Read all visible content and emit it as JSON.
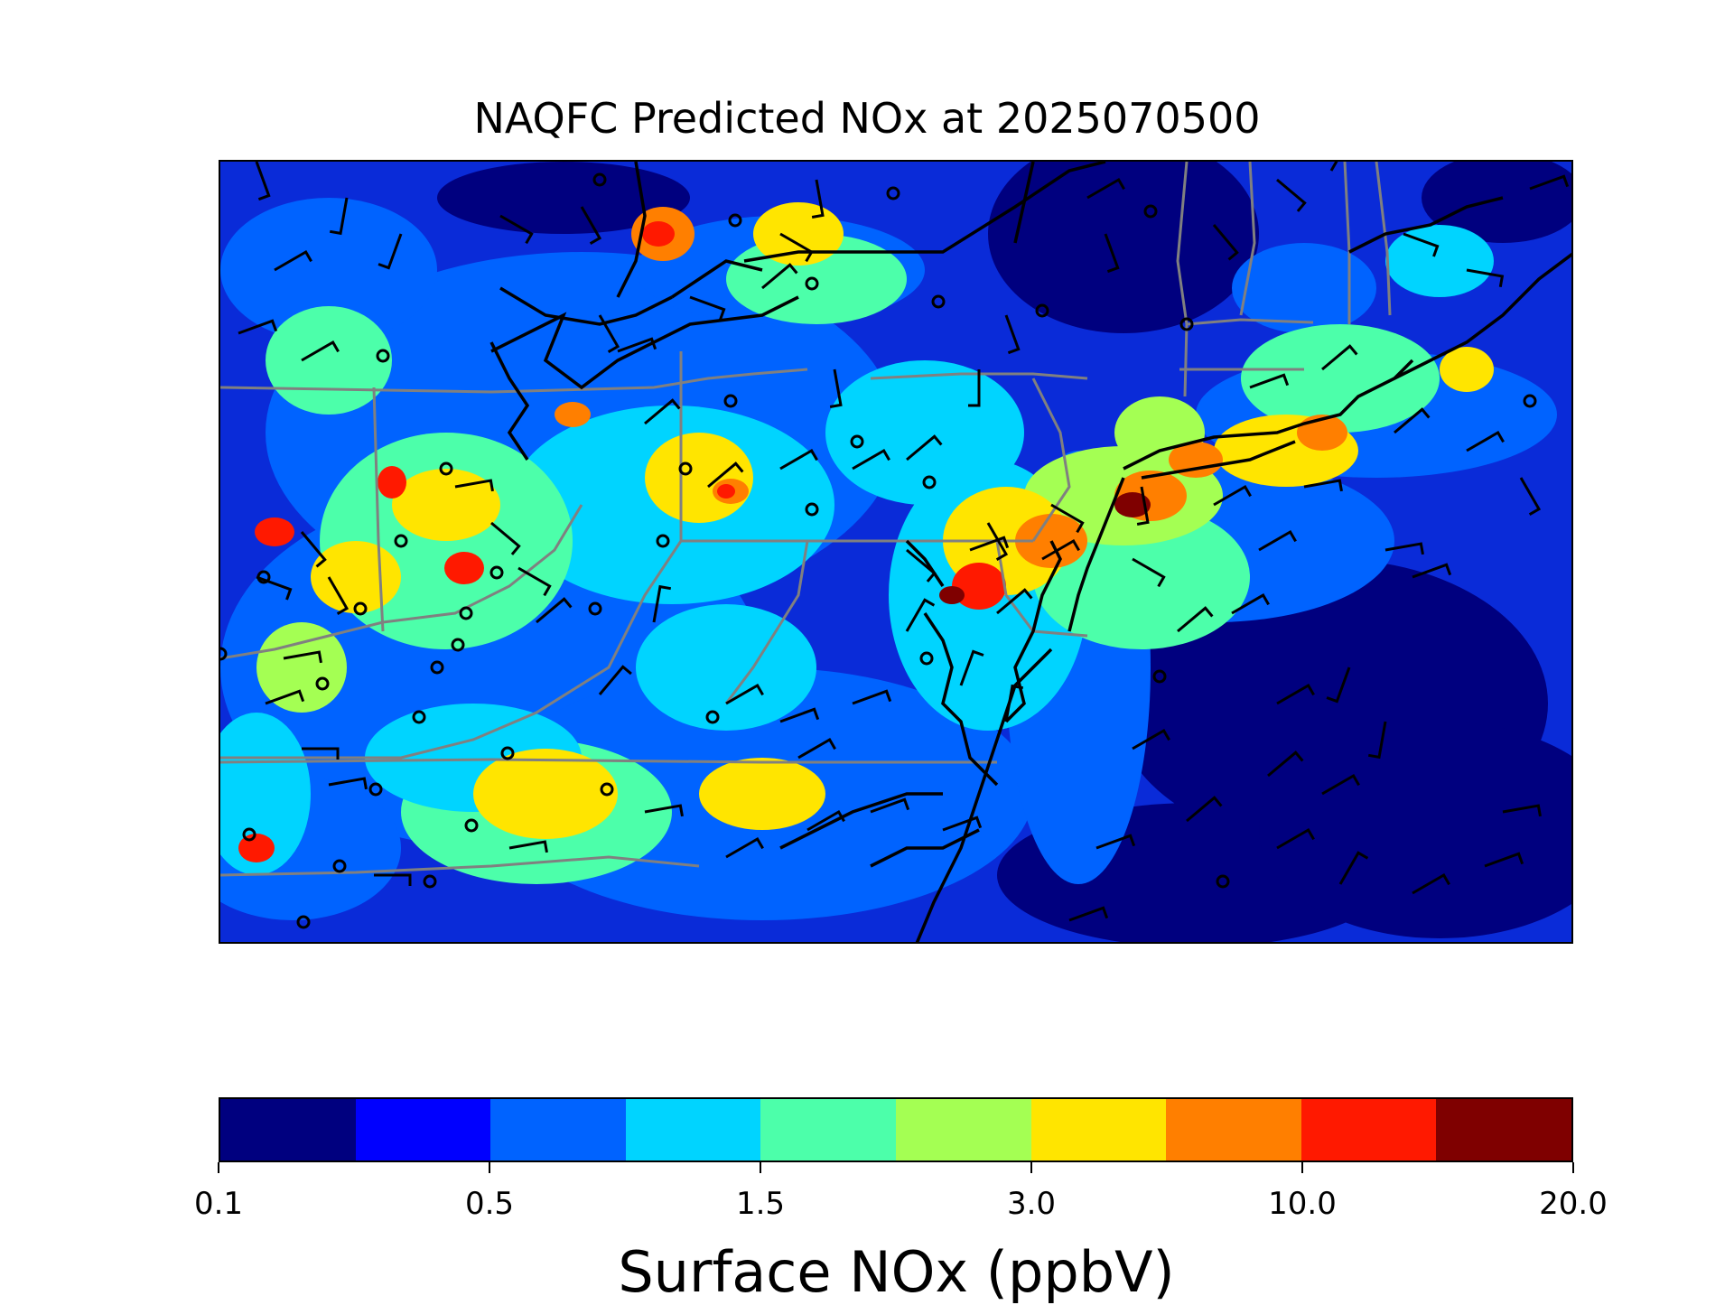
{
  "title": "NAQFC Predicted NOx at 2025070500",
  "map": {
    "variable": "Surface NOx",
    "units": "ppbV",
    "colormap": "jet",
    "background_level": "0.5",
    "state_boundary_color": "#808080",
    "coastline_color": "#000000",
    "overlays": [
      "wind-barbs",
      "station-circles"
    ]
  },
  "colorbar": {
    "label": "Surface NOx (ppbV)",
    "colors": [
      "#00007f",
      "#0000ff",
      "#0063ff",
      "#00d4ff",
      "#4cffaa",
      "#a4ff53",
      "#ffe500",
      "#ff7f00",
      "#ff1900",
      "#7f0000"
    ],
    "tick_labels": [
      "0.1",
      "0.5",
      "1.5",
      "3.0",
      "10.0",
      "20.0"
    ]
  }
}
